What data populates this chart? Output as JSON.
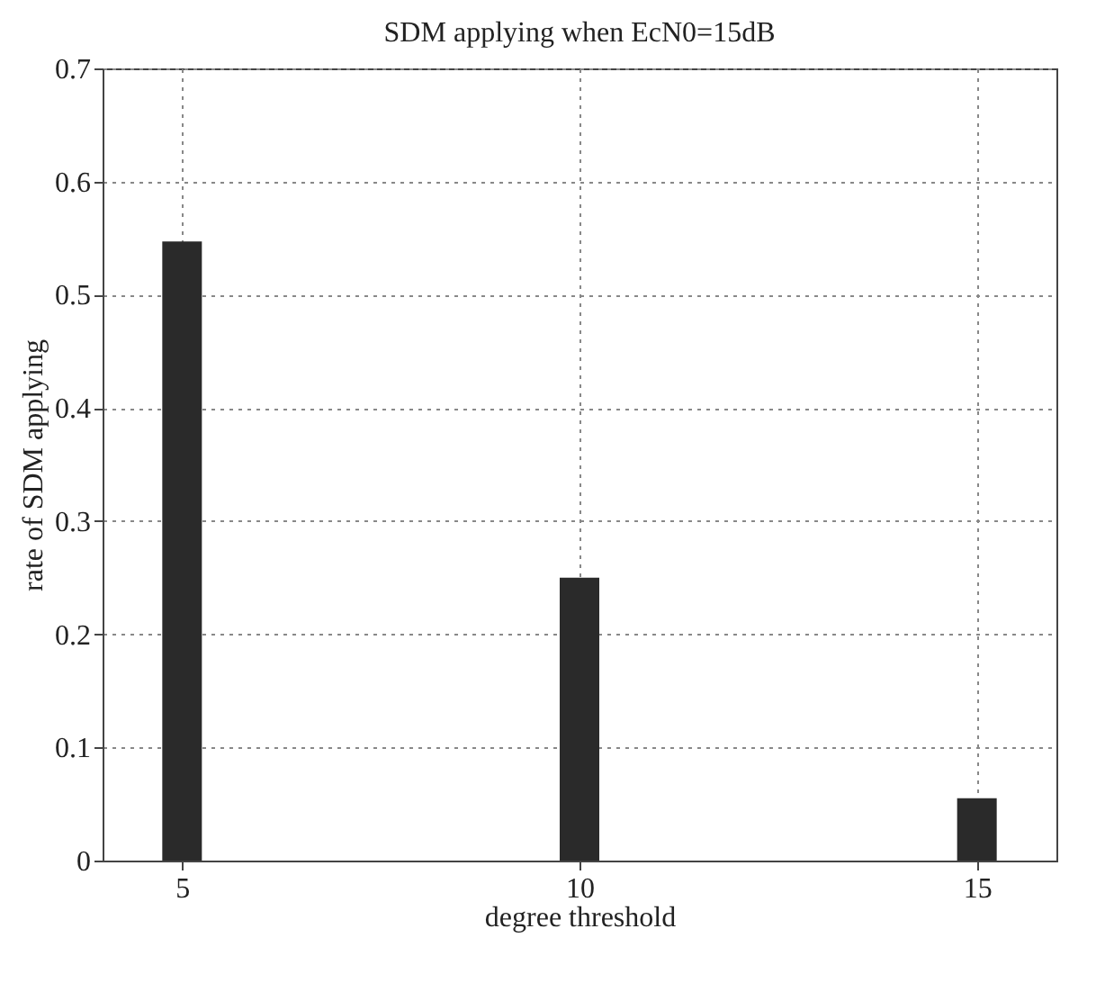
{
  "chart_data": {
    "type": "bar",
    "title": "SDM applying when EcN0=15dB",
    "xlabel": "degree threshold",
    "ylabel": "rate of SDM applying",
    "x": [
      5,
      10,
      15
    ],
    "values": [
      0.547,
      0.25,
      0.055
    ],
    "color": "#2a2a2a",
    "xlim": [
      4,
      16
    ],
    "xticks": [
      5,
      10,
      15
    ],
    "ylim": [
      0,
      0.7
    ],
    "yticks": [
      0,
      0.1,
      0.2,
      0.3,
      0.4,
      0.5,
      0.6,
      0.7
    ],
    "grid": true
  }
}
